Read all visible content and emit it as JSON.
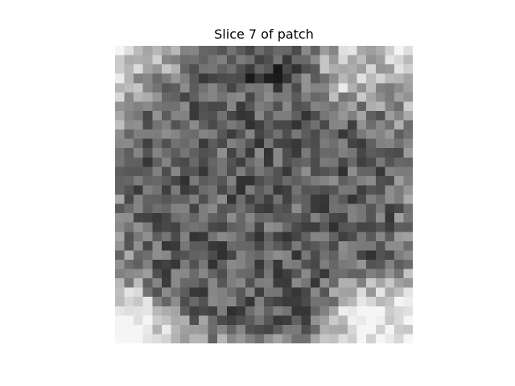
{
  "figure": {
    "title": "Slice 7 of patch"
  },
  "image": {
    "grid_size": 32,
    "colormap": "gray",
    "axes_visible": false,
    "content": "grayscale pixelated patch (32×32), texture values estimated"
  }
}
